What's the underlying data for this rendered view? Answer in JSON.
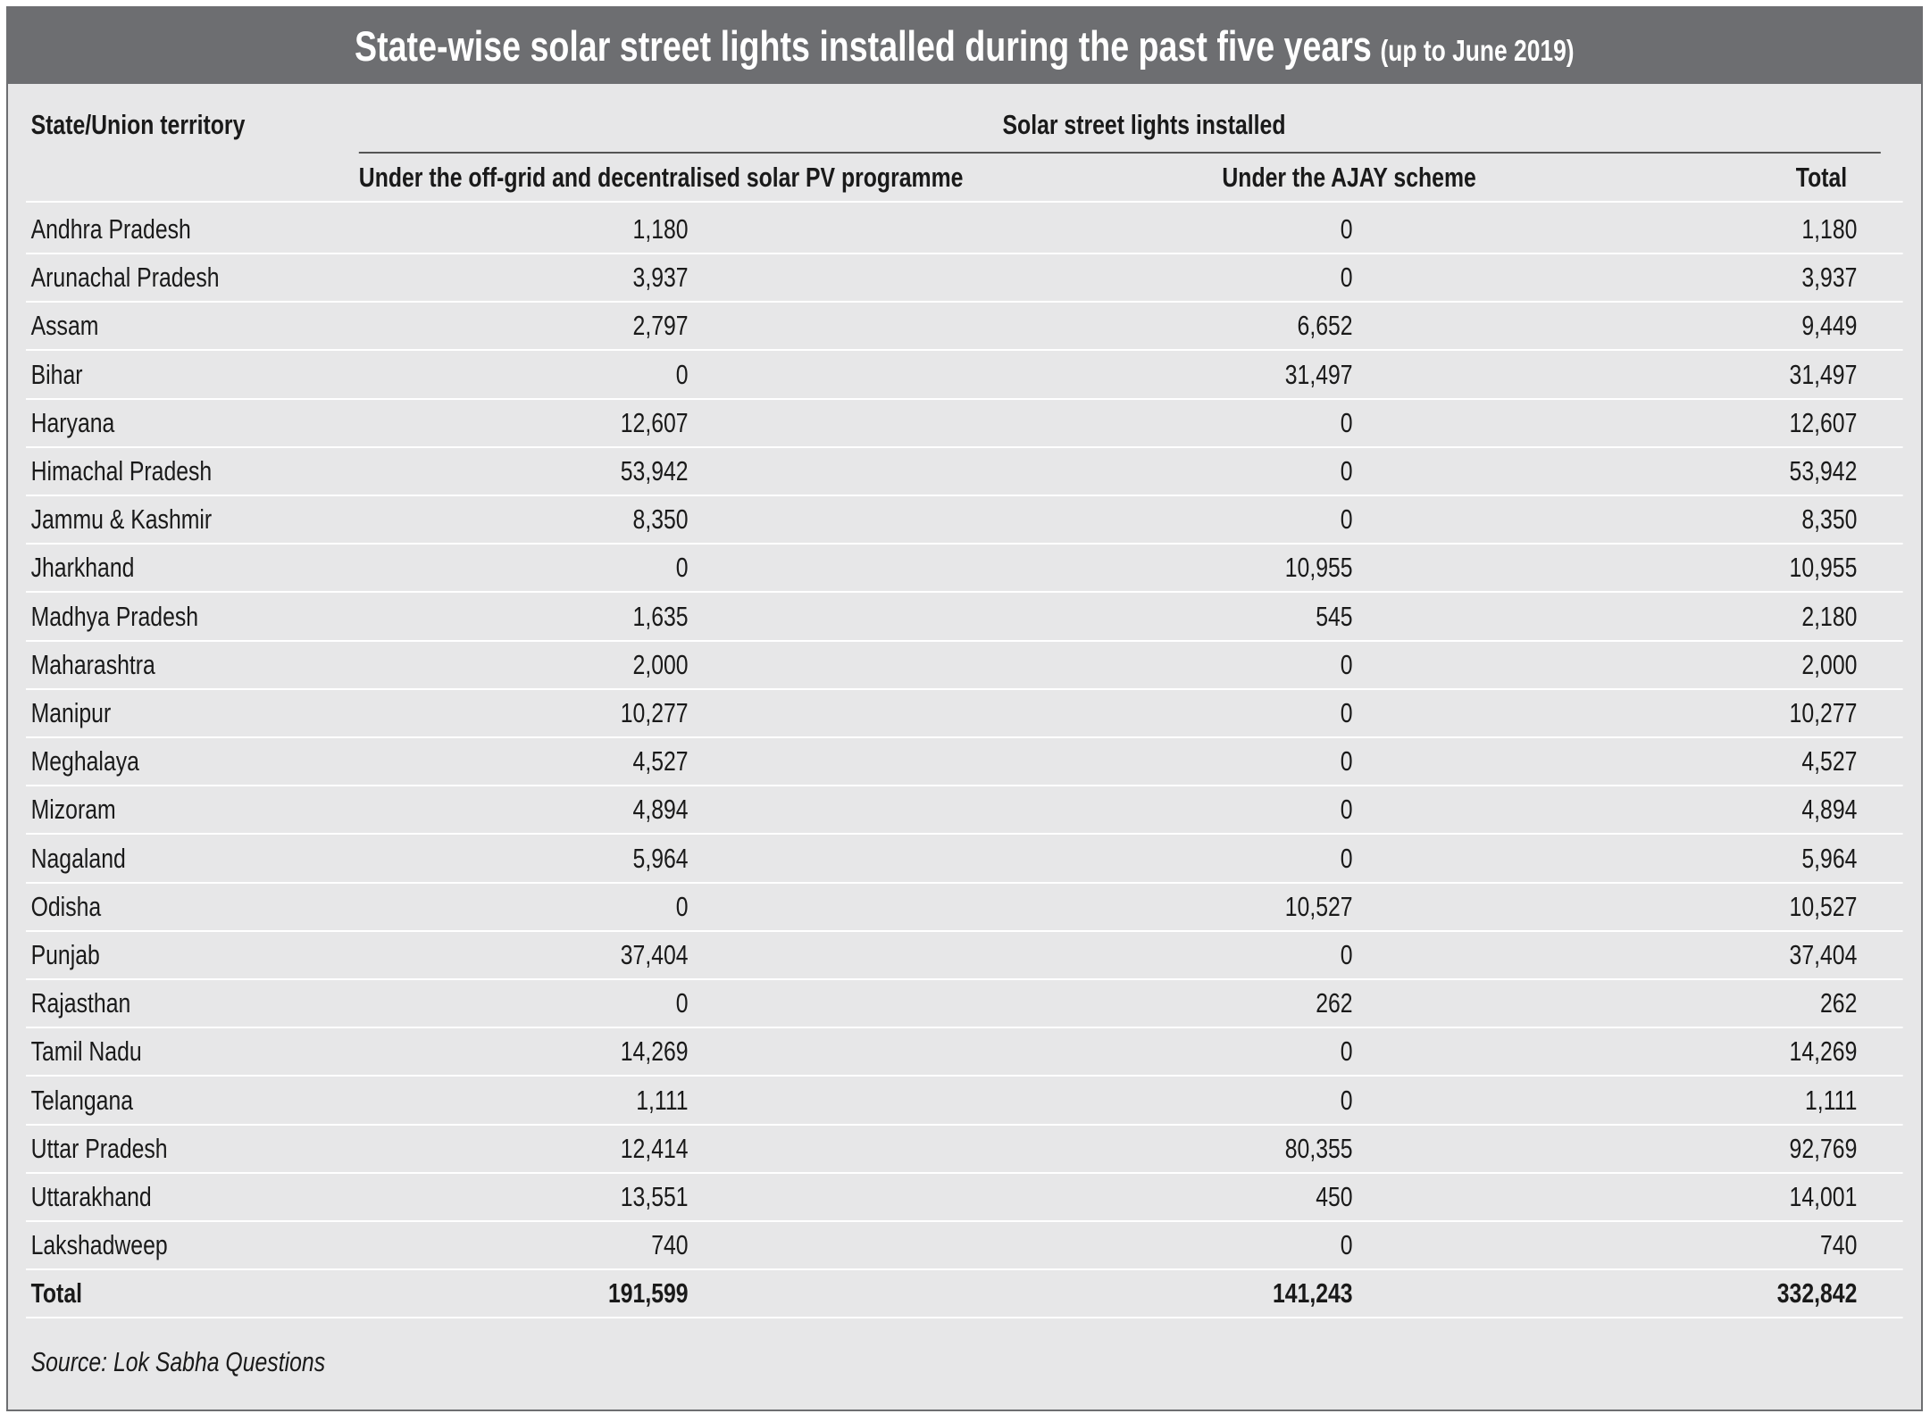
{
  "header": {
    "title": "State-wise solar street lights installed during the past five years",
    "subtitle": "(up to June 2019)"
  },
  "table": {
    "columns": {
      "state": "State/Union territory",
      "group": "Solar street lights installed",
      "sub": [
        "Under the off-grid and decentralised solar PV programme",
        "Under the AJAY scheme",
        "Total"
      ]
    },
    "rows": [
      [
        "Andhra Pradesh",
        "1,180",
        "0",
        "1,180"
      ],
      [
        "Arunachal Pradesh",
        "3,937",
        "0",
        "3,937"
      ],
      [
        "Assam",
        "2,797",
        "6,652",
        "9,449"
      ],
      [
        "Bihar",
        "0",
        "31,497",
        "31,497"
      ],
      [
        "Haryana",
        "12,607",
        "0",
        "12,607"
      ],
      [
        "Himachal Pradesh",
        "53,942",
        "0",
        "53,942"
      ],
      [
        "Jammu & Kashmir",
        "8,350",
        "0",
        "8,350"
      ],
      [
        "Jharkhand",
        "0",
        "10,955",
        "10,955"
      ],
      [
        "Madhya Pradesh",
        "1,635",
        "545",
        "2,180"
      ],
      [
        "Maharashtra",
        "2,000",
        "0",
        "2,000"
      ],
      [
        "Manipur",
        "10,277",
        "0",
        "10,277"
      ],
      [
        "Meghalaya",
        "4,527",
        "0",
        "4,527"
      ],
      [
        "Mizoram",
        "4,894",
        "0",
        "4,894"
      ],
      [
        "Nagaland",
        "5,964",
        "0",
        "5,964"
      ],
      [
        "Odisha",
        "0",
        "10,527",
        "10,527"
      ],
      [
        "Punjab",
        "37,404",
        "0",
        "37,404"
      ],
      [
        "Rajasthan",
        "0",
        "262",
        "262"
      ],
      [
        "Tamil Nadu",
        "14,269",
        "0",
        "14,269"
      ],
      [
        "Telangana",
        "1,111",
        "0",
        "1,111"
      ],
      [
        "Uttar Pradesh",
        "12,414",
        "80,355",
        "92,769"
      ],
      [
        "Uttarakhand",
        "13,551",
        "450",
        "14,001"
      ],
      [
        "Lakshadweep",
        "740",
        "0",
        "740"
      ]
    ],
    "total": [
      "Total",
      "191,599",
      "141,243",
      "332,842"
    ]
  },
  "source": "Source: Lok Sabha Questions"
}
